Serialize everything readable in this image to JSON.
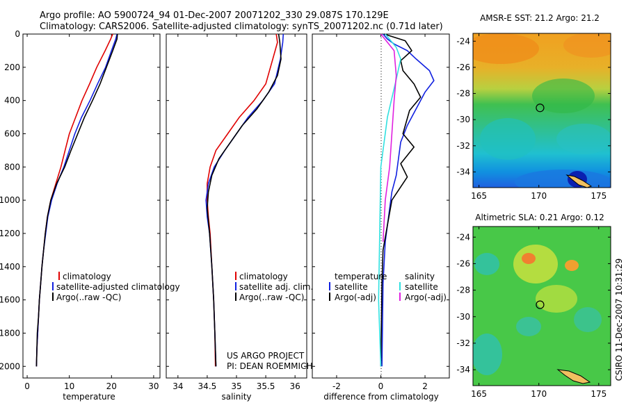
{
  "header": {
    "line1": "Argo profile: AO 5900724_94 01-Dec-2007 20071202_330 29.087S 170.129E",
    "line2": "Climatology: CARS2006. Satellite-adjusted climatology: synTS_20071202.nc (0.71d later)"
  },
  "side_label": "CSIRO 11-Dec-2007 10:31:29",
  "colors": {
    "climatology": "#e00000",
    "satellite": "#1020e0",
    "argo": "#000000",
    "cyan": "#30e0e0",
    "magenta": "#e020e0"
  },
  "chart_data": [
    {
      "type": "line",
      "xlabel": "temperature",
      "ylabel": "",
      "xlim": [
        -1,
        31.5
      ],
      "ylim": [
        2070,
        0
      ],
      "xticks": [
        "0",
        "10",
        "20",
        "30"
      ],
      "xtick_values": [
        0,
        10,
        20,
        30
      ],
      "yticks": [
        "0",
        "200",
        "400",
        "600",
        "800",
        "1000",
        "1200",
        "1400",
        "1600",
        "1800",
        "2000"
      ],
      "ytick_values": [
        0,
        200,
        400,
        600,
        800,
        1000,
        1200,
        1400,
        1600,
        1800,
        2000
      ],
      "legend": [
        {
          "label": "climatology",
          "color": "#e00000"
        },
        {
          "label": "satellite-adjusted climatology",
          "color": "#1020e0"
        },
        {
          "label": "Argo(..raw -QC)",
          "color": "#000000"
        }
      ],
      "series": [
        {
          "color": "#e00000",
          "points": [
            [
              20.3,
              0
            ],
            [
              19.8,
              30
            ],
            [
              18.5,
              100
            ],
            [
              16.5,
              200
            ],
            [
              14.8,
              300
            ],
            [
              13.0,
              400
            ],
            [
              11.5,
              500
            ],
            [
              10.0,
              600
            ],
            [
              9.0,
              700
            ],
            [
              8.0,
              800
            ],
            [
              6.8,
              900
            ],
            [
              5.6,
              1000
            ],
            [
              4.8,
              1100
            ],
            [
              4.3,
              1200
            ],
            [
              3.9,
              1300
            ],
            [
              3.5,
              1400
            ],
            [
              3.2,
              1500
            ],
            [
              2.9,
              1600
            ],
            [
              2.7,
              1700
            ],
            [
              2.5,
              1800
            ],
            [
              2.3,
              1900
            ],
            [
              2.2,
              2000
            ]
          ]
        },
        {
          "color": "#1020e0",
          "points": [
            [
              21.3,
              0
            ],
            [
              21.0,
              30
            ],
            [
              20.0,
              100
            ],
            [
              18.6,
              200
            ],
            [
              16.7,
              300
            ],
            [
              14.9,
              400
            ],
            [
              12.9,
              500
            ],
            [
              11.3,
              600
            ],
            [
              10.0,
              700
            ],
            [
              8.7,
              800
            ],
            [
              7.1,
              900
            ],
            [
              5.8,
              1000
            ],
            [
              4.9,
              1100
            ],
            [
              4.4,
              1200
            ],
            [
              3.9,
              1300
            ],
            [
              3.5,
              1400
            ],
            [
              3.2,
              1500
            ],
            [
              2.9,
              1600
            ],
            [
              2.7,
              1700
            ],
            [
              2.5,
              1800
            ],
            [
              2.3,
              1900
            ],
            [
              2.2,
              2000
            ]
          ]
        },
        {
          "color": "#000000",
          "points": [
            [
              21.4,
              0
            ],
            [
              21.3,
              30
            ],
            [
              20.3,
              100
            ],
            [
              18.8,
              200
            ],
            [
              17.3,
              300
            ],
            [
              15.5,
              400
            ],
            [
              13.6,
              500
            ],
            [
              12.0,
              600
            ],
            [
              10.4,
              700
            ],
            [
              8.9,
              800
            ],
            [
              7.0,
              900
            ],
            [
              5.6,
              1000
            ],
            [
              4.8,
              1100
            ],
            [
              4.3,
              1200
            ],
            [
              3.9,
              1300
            ],
            [
              3.5,
              1400
            ],
            [
              3.2,
              1500
            ],
            [
              2.9,
              1600
            ],
            [
              2.7,
              1700
            ],
            [
              2.4,
              1800
            ],
            [
              2.3,
              1900
            ],
            [
              2.2,
              2000
            ]
          ]
        }
      ]
    },
    {
      "type": "line",
      "xlabel": "salinity",
      "ylabel": "",
      "xlim": [
        33.8,
        36.2
      ],
      "ylim": [
        2070,
        0
      ],
      "xticks": [
        "34",
        "34.5",
        "35",
        "35.5",
        "36"
      ],
      "xtick_values": [
        34,
        34.5,
        35,
        35.5,
        36
      ],
      "legend": [
        {
          "label": "climatology",
          "color": "#e00000"
        },
        {
          "label": "satellite adj. clim.",
          "color": "#1020e0"
        },
        {
          "label": "Argo(..raw -QC)",
          "color": "#000000"
        }
      ],
      "annotation": [
        "US ARGO PROJECT",
        "PI: DEAN ROEMMICH"
      ],
      "series": [
        {
          "color": "#e00000",
          "points": [
            [
              35.68,
              0
            ],
            [
              35.7,
              50
            ],
            [
              35.62,
              150
            ],
            [
              35.5,
              300
            ],
            [
              35.3,
              400
            ],
            [
              35.05,
              500
            ],
            [
              34.85,
              600
            ],
            [
              34.65,
              700
            ],
            [
              34.55,
              800
            ],
            [
              34.5,
              900
            ],
            [
              34.5,
              1000
            ],
            [
              34.52,
              1100
            ],
            [
              34.55,
              1200
            ],
            [
              34.58,
              1400
            ],
            [
              34.61,
              1600
            ],
            [
              34.63,
              1800
            ],
            [
              34.64,
              2000
            ]
          ]
        },
        {
          "color": "#1020e0",
          "points": [
            [
              35.8,
              0
            ],
            [
              35.79,
              50
            ],
            [
              35.75,
              150
            ],
            [
              35.65,
              300
            ],
            [
              35.45,
              400
            ],
            [
              35.2,
              500
            ],
            [
              35.0,
              600
            ],
            [
              34.8,
              700
            ],
            [
              34.62,
              800
            ],
            [
              34.52,
              900
            ],
            [
              34.48,
              1000
            ],
            [
              34.5,
              1100
            ],
            [
              34.54,
              1200
            ],
            [
              34.58,
              1400
            ],
            [
              34.61,
              1600
            ],
            [
              34.63,
              1800
            ],
            [
              34.65,
              2000
            ]
          ]
        },
        {
          "color": "#000000",
          "points": [
            [
              35.72,
              0
            ],
            [
              35.74,
              50
            ],
            [
              35.76,
              150
            ],
            [
              35.7,
              250
            ],
            [
              35.55,
              350
            ],
            [
              35.35,
              450
            ],
            [
              35.1,
              550
            ],
            [
              34.9,
              650
            ],
            [
              34.7,
              750
            ],
            [
              34.58,
              850
            ],
            [
              34.52,
              950
            ],
            [
              34.5,
              1050
            ],
            [
              34.54,
              1200
            ],
            [
              34.58,
              1400
            ],
            [
              34.61,
              1600
            ],
            [
              34.63,
              1800
            ],
            [
              34.65,
              2000
            ]
          ]
        }
      ]
    },
    {
      "type": "line",
      "xlabel": "difference from climatology",
      "ylabel": "",
      "xlim": [
        -3.1,
        3.1
      ],
      "ylim": [
        2070,
        0
      ],
      "xticks": [
        "-2",
        "0",
        "2"
      ],
      "xtick_values": [
        -2,
        0,
        2
      ],
      "legend": [
        {
          "label": "temperature",
          "color": ""
        },
        {
          "label": "salinity",
          "color": ""
        },
        {
          "label": "satellite",
          "color": "#1020e0"
        },
        {
          "label": "satellite",
          "color": "#30e0e0"
        },
        {
          "label": "Argo(-adj)",
          "color": "#000000"
        },
        {
          "label": "Argo(-adj)",
          "color": "#e020e0"
        }
      ],
      "series": [
        {
          "color": "#1020e0",
          "points": [
            [
              0.1,
              0
            ],
            [
              0.3,
              30
            ],
            [
              0.6,
              60
            ],
            [
              1.2,
              100
            ],
            [
              1.6,
              150
            ],
            [
              2.2,
              220
            ],
            [
              2.4,
              280
            ],
            [
              2.0,
              350
            ],
            [
              1.6,
              450
            ],
            [
              1.2,
              550
            ],
            [
              0.9,
              650
            ],
            [
              0.8,
              750
            ],
            [
              0.7,
              850
            ],
            [
              0.5,
              950
            ],
            [
              0.35,
              1100
            ],
            [
              0.2,
              1250
            ],
            [
              0.1,
              1500
            ],
            [
              0.05,
              2000
            ]
          ]
        },
        {
          "color": "#000000",
          "points": [
            [
              0.15,
              0
            ],
            [
              1.1,
              40
            ],
            [
              1.4,
              100
            ],
            [
              0.9,
              160
            ],
            [
              1.0,
              220
            ],
            [
              1.5,
              300
            ],
            [
              1.8,
              380
            ],
            [
              1.3,
              460
            ],
            [
              1.0,
              600
            ],
            [
              1.5,
              680
            ],
            [
              0.9,
              780
            ],
            [
              1.2,
              860
            ],
            [
              0.8,
              940
            ],
            [
              0.5,
              1000
            ],
            [
              0.3,
              1150
            ],
            [
              0.1,
              1300
            ],
            [
              0.05,
              1500
            ],
            [
              0.0,
              2000
            ]
          ]
        },
        {
          "color": "#30e0e0",
          "points": [
            [
              0.2,
              0
            ],
            [
              0.7,
              80
            ],
            [
              0.9,
              150
            ],
            [
              0.65,
              300
            ],
            [
              0.3,
              500
            ],
            [
              0.0,
              800
            ],
            [
              -0.05,
              1200
            ],
            [
              -0.1,
              1600
            ],
            [
              0.0,
              2000
            ]
          ]
        },
        {
          "color": "#e020e0",
          "points": [
            [
              0.0,
              0
            ],
            [
              0.6,
              100
            ],
            [
              0.7,
              250
            ],
            [
              0.6,
              400
            ],
            [
              0.5,
              600
            ],
            [
              0.4,
              800
            ],
            [
              0.2,
              1000
            ],
            [
              0.1,
              1250
            ]
          ]
        }
      ]
    },
    {
      "type": "heatmap",
      "title": "AMSR-E SST: 21.2 Argo: 21.2",
      "xlim": [
        164.5,
        176.0
      ],
      "ylim": [
        -35.2,
        -23.4
      ],
      "xticks": [
        "165",
        "170",
        "175"
      ],
      "xtick_values": [
        165,
        170,
        175
      ],
      "yticks": [
        "-24",
        "-26",
        "-28",
        "-30",
        "-32",
        "-34"
      ],
      "ytick_values": [
        -24,
        -26,
        -28,
        -30,
        -32,
        -34
      ],
      "marker": [
        170.1,
        -29.1
      ]
    },
    {
      "type": "heatmap",
      "title": "Altimetric SLA: 0.21 Argo: 0.12",
      "xlim": [
        164.5,
        176.0
      ],
      "ylim": [
        -35.2,
        -23.2
      ],
      "xticks": [
        "165",
        "170",
        "175"
      ],
      "xtick_values": [
        165,
        170,
        175
      ],
      "yticks": [
        "-24",
        "-26",
        "-28",
        "-30",
        "-32",
        "-34"
      ],
      "ytick_values": [
        -24,
        -26,
        -28,
        -30,
        -32,
        -34
      ],
      "marker": [
        170.1,
        -29.1
      ]
    }
  ]
}
